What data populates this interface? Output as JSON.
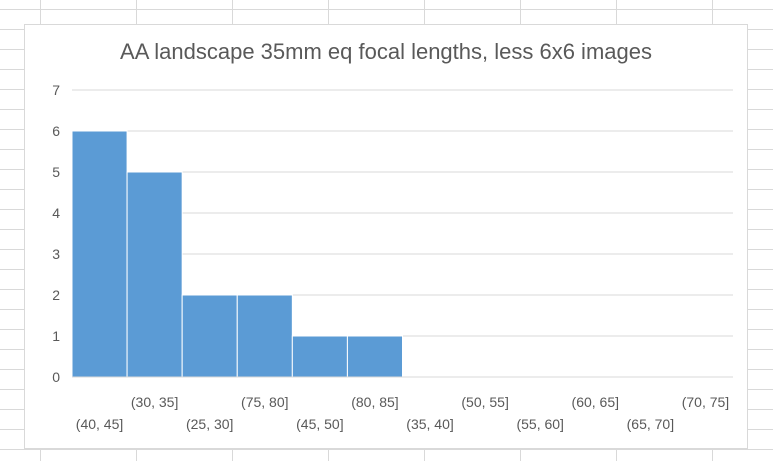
{
  "chart_data": {
    "type": "bar",
    "title": "AA landscape 35mm eq focal lengths, less 6x6 images",
    "xlabel": "",
    "ylabel": "",
    "categories": [
      "(40, 45]",
      "(30, 35]",
      "(25, 30]",
      "(75, 80]",
      "(45, 50]",
      "(80, 85]",
      "(35, 40]",
      "(50, 55]",
      "(55, 60]",
      "(60, 65]",
      "(65, 70]",
      "(70, 75]"
    ],
    "values": [
      6,
      5,
      2,
      2,
      1,
      1,
      0,
      0,
      0,
      0,
      0,
      0
    ],
    "ylim": [
      0,
      7
    ],
    "yticks": [
      0,
      1,
      2,
      3,
      4,
      5,
      6,
      7
    ],
    "grid": true,
    "legend": "none",
    "bar_color": "#5b9bd5",
    "gridline_color": "#d9d9d9",
    "text_color": "#595959"
  }
}
